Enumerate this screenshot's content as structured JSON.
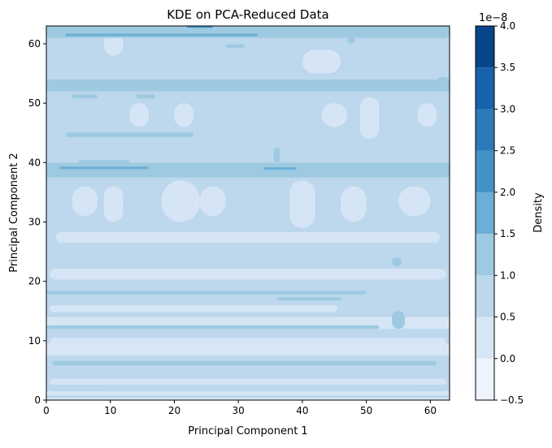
{
  "chart_data": {
    "type": "heatmap",
    "title": "KDE on PCA-Reduced Data",
    "xlabel": "Principal Component 1",
    "ylabel": "Principal Component 2",
    "xlim": [
      0,
      63
    ],
    "ylim": [
      0,
      63
    ],
    "x_ticks": [
      "0",
      "10",
      "20",
      "30",
      "40",
      "50",
      "60"
    ],
    "y_ticks": [
      "0",
      "10",
      "20",
      "30",
      "40",
      "50",
      "60"
    ],
    "colorbar": {
      "label": "Density",
      "scale_note": "1e−8",
      "levels": [
        -0.5,
        0.0,
        0.5,
        1.0,
        1.5,
        2.0,
        2.5,
        3.0,
        3.5,
        4.0
      ],
      "tick_labels": [
        "−0.5",
        "0.0",
        "0.5",
        "1.0",
        "1.5",
        "2.0",
        "2.5",
        "3.0",
        "3.5",
        "4.0"
      ],
      "colors": [
        "#eef4fb",
        "#d6e6f5",
        "#bdd7ec",
        "#9ecae1",
        "#6baed6",
        "#4292c6",
        "#2b7bba",
        "#1663aa",
        "#08458a"
      ]
    },
    "background_level_index": 1,
    "horizontal_bands": [
      {
        "y0": 0,
        "y1": 1.8,
        "level": 1
      },
      {
        "y0": 1.8,
        "y1": 4.5,
        "level": 2
      },
      {
        "y0": 4.5,
        "y1": 7.5,
        "level": 2
      },
      {
        "y0": 7.5,
        "y1": 9.5,
        "level": 1
      },
      {
        "y0": 9.5,
        "y1": 12,
        "level": 2
      },
      {
        "y0": 12,
        "y1": 14,
        "level": 1
      },
      {
        "y0": 14,
        "y1": 17,
        "level": 2
      },
      {
        "y0": 17,
        "y1": 20,
        "level": 2
      },
      {
        "y0": 20,
        "y1": 22,
        "level": 2
      },
      {
        "y0": 22,
        "y1": 26,
        "level": 2
      },
      {
        "y0": 26,
        "y1": 29,
        "level": 2
      },
      {
        "y0": 29,
        "y1": 37.5,
        "level": 2
      },
      {
        "y0": 37.5,
        "y1": 40,
        "level": 3
      },
      {
        "y0": 40,
        "y1": 45,
        "level": 2
      },
      {
        "y0": 45,
        "y1": 52,
        "level": 2
      },
      {
        "y0": 52,
        "y1": 54,
        "level": 3
      },
      {
        "y0": 54,
        "y1": 59,
        "level": 2
      },
      {
        "y0": 59,
        "y1": 62,
        "level": 2
      },
      {
        "y0": 62,
        "y1": 63,
        "level": 3
      }
    ],
    "light_patches": [
      {
        "x": 0.5,
        "y": 2.6,
        "w": 62,
        "h": 1.0
      },
      {
        "x": 0.5,
        "y": 9.0,
        "w": 62,
        "h": 1.5
      },
      {
        "x": 0.5,
        "y": 14.8,
        "w": 45,
        "h": 1.2
      },
      {
        "x": 0.5,
        "y": 20.3,
        "w": 62,
        "h": 1.8
      },
      {
        "x": 1.5,
        "y": 26.5,
        "w": 60,
        "h": 1.8
      },
      {
        "x": 4,
        "y": 31,
        "w": 4,
        "h": 5
      },
      {
        "x": 9,
        "y": 30,
        "w": 3,
        "h": 6
      },
      {
        "x": 18,
        "y": 30,
        "w": 6,
        "h": 7
      },
      {
        "x": 24,
        "y": 31,
        "w": 4,
        "h": 5
      },
      {
        "x": 38,
        "y": 29,
        "w": 4,
        "h": 8
      },
      {
        "x": 46,
        "y": 30,
        "w": 4,
        "h": 6
      },
      {
        "x": 55,
        "y": 31,
        "w": 5,
        "h": 5
      },
      {
        "x": 13,
        "y": 46,
        "w": 3,
        "h": 4
      },
      {
        "x": 20,
        "y": 46,
        "w": 3,
        "h": 4
      },
      {
        "x": 43,
        "y": 46,
        "w": 4,
        "h": 4
      },
      {
        "x": 49,
        "y": 44,
        "w": 3,
        "h": 7
      },
      {
        "x": 58,
        "y": 46,
        "w": 3,
        "h": 4
      },
      {
        "x": 40,
        "y": 55,
        "w": 6,
        "h": 4
      },
      {
        "x": 9,
        "y": 58,
        "w": 3,
        "h": 4
      }
    ],
    "dark_streaks": [
      {
        "x": 0,
        "y": 0.4,
        "w": 63,
        "h": 0.4,
        "level": 2
      },
      {
        "x": 0,
        "y": 1.5,
        "w": 63,
        "h": 0.6,
        "level": 2
      },
      {
        "x": 1,
        "y": 5.8,
        "w": 60,
        "h": 0.8,
        "level": 3
      },
      {
        "x": 0,
        "y": 12.0,
        "w": 52,
        "h": 0.6,
        "level": 3
      },
      {
        "x": 0,
        "y": 17.8,
        "w": 50,
        "h": 0.6,
        "level": 3
      },
      {
        "x": 36,
        "y": 16.8,
        "w": 10,
        "h": 0.5,
        "level": 3
      },
      {
        "x": 54,
        "y": 12,
        "w": 2,
        "h": 3,
        "level": 3
      },
      {
        "x": 54,
        "y": 22.5,
        "w": 1.5,
        "h": 1.5,
        "level": 3
      },
      {
        "x": 0,
        "y": 38.5,
        "w": 63,
        "h": 1.2,
        "level": 3
      },
      {
        "x": 2,
        "y": 38.9,
        "w": 14,
        "h": 0.4,
        "level": 4
      },
      {
        "x": 34,
        "y": 38.8,
        "w": 5,
        "h": 0.4,
        "level": 4
      },
      {
        "x": 5,
        "y": 39.8,
        "w": 8,
        "h": 0.6,
        "level": 3
      },
      {
        "x": 35.5,
        "y": 40,
        "w": 1,
        "h": 2.5,
        "level": 3
      },
      {
        "x": 3,
        "y": 44.3,
        "w": 20,
        "h": 0.8,
        "level": 3
      },
      {
        "x": 4,
        "y": 50.8,
        "w": 4,
        "h": 0.7,
        "level": 3
      },
      {
        "x": 14,
        "y": 50.8,
        "w": 3,
        "h": 0.7,
        "level": 3
      },
      {
        "x": 4,
        "y": 52.5,
        "w": 40,
        "h": 1.2,
        "level": 3
      },
      {
        "x": 61,
        "y": 53,
        "w": 2,
        "h": 1.4,
        "level": 3
      },
      {
        "x": 0,
        "y": 61,
        "w": 63,
        "h": 1.1,
        "level": 3
      },
      {
        "x": 3,
        "y": 61.3,
        "w": 30,
        "h": 0.4,
        "level": 4
      },
      {
        "x": 0,
        "y": 62.6,
        "w": 63,
        "h": 0.4,
        "level": 3
      },
      {
        "x": 22,
        "y": 62.7,
        "w": 4,
        "h": 0.3,
        "level": 5
      },
      {
        "x": 28,
        "y": 59.3,
        "w": 3,
        "h": 0.6,
        "level": 3
      },
      {
        "x": 47,
        "y": 60,
        "w": 1.2,
        "h": 1.4,
        "level": 3
      }
    ]
  }
}
